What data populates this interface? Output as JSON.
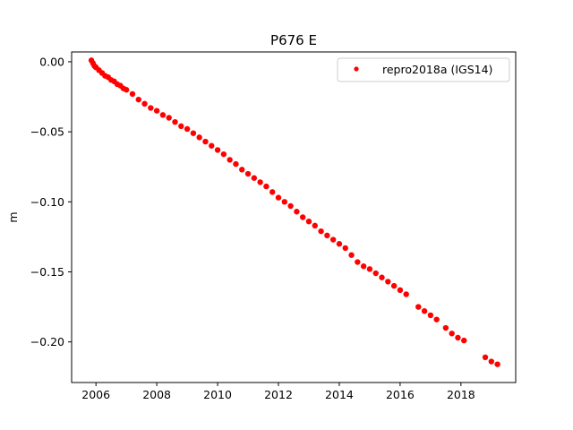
{
  "chart_data": {
    "type": "scatter",
    "title": "P676 E",
    "xlabel": "",
    "ylabel": "m",
    "xlim": [
      2005.2,
      2019.8
    ],
    "ylim": [
      -0.229,
      0.007
    ],
    "xticks": [
      2006,
      2008,
      2010,
      2012,
      2014,
      2016,
      2018
    ],
    "xtick_labels": [
      "2006",
      "2008",
      "2010",
      "2012",
      "2014",
      "2016",
      "2018"
    ],
    "yticks": [
      0.0,
      -0.05,
      -0.1,
      -0.15,
      -0.2
    ],
    "ytick_labels": [
      "0.00",
      "−0.05",
      "−0.10",
      "−0.15",
      "−0.20"
    ],
    "grid": false,
    "legend_position": "top-right",
    "series": [
      {
        "name": "repro2018a (IGS14)",
        "color": "#ff0000",
        "marker": "circle",
        "points": [
          [
            2005.85,
            0.001
          ],
          [
            2005.9,
            -0.001
          ],
          [
            2005.95,
            -0.003
          ],
          [
            2006.0,
            -0.004
          ],
          [
            2006.1,
            -0.006
          ],
          [
            2006.2,
            -0.008
          ],
          [
            2006.3,
            -0.01
          ],
          [
            2006.4,
            -0.011
          ],
          [
            2006.5,
            -0.013
          ],
          [
            2006.6,
            -0.014
          ],
          [
            2006.7,
            -0.016
          ],
          [
            2006.8,
            -0.017
          ],
          [
            2006.9,
            -0.019
          ],
          [
            2007.0,
            -0.02
          ],
          [
            2007.2,
            -0.023
          ],
          [
            2007.4,
            -0.027
          ],
          [
            2007.6,
            -0.03
          ],
          [
            2007.8,
            -0.033
          ],
          [
            2008.0,
            -0.035
          ],
          [
            2008.2,
            -0.038
          ],
          [
            2008.4,
            -0.04
          ],
          [
            2008.6,
            -0.043
          ],
          [
            2008.8,
            -0.046
          ],
          [
            2009.0,
            -0.048
          ],
          [
            2009.2,
            -0.051
          ],
          [
            2009.4,
            -0.054
          ],
          [
            2009.6,
            -0.057
          ],
          [
            2009.8,
            -0.06
          ],
          [
            2010.0,
            -0.063
          ],
          [
            2010.2,
            -0.066
          ],
          [
            2010.4,
            -0.07
          ],
          [
            2010.6,
            -0.073
          ],
          [
            2010.8,
            -0.077
          ],
          [
            2011.0,
            -0.08
          ],
          [
            2011.2,
            -0.083
          ],
          [
            2011.4,
            -0.086
          ],
          [
            2011.6,
            -0.089
          ],
          [
            2011.8,
            -0.093
          ],
          [
            2012.0,
            -0.097
          ],
          [
            2012.2,
            -0.1
          ],
          [
            2012.4,
            -0.103
          ],
          [
            2012.6,
            -0.107
          ],
          [
            2012.8,
            -0.111
          ],
          [
            2013.0,
            -0.114
          ],
          [
            2013.2,
            -0.117
          ],
          [
            2013.4,
            -0.121
          ],
          [
            2013.6,
            -0.124
          ],
          [
            2013.8,
            -0.127
          ],
          [
            2014.0,
            -0.13
          ],
          [
            2014.2,
            -0.133
          ],
          [
            2014.4,
            -0.138
          ],
          [
            2014.6,
            -0.143
          ],
          [
            2014.8,
            -0.146
          ],
          [
            2015.0,
            -0.148
          ],
          [
            2015.2,
            -0.151
          ],
          [
            2015.4,
            -0.154
          ],
          [
            2015.6,
            -0.157
          ],
          [
            2015.8,
            -0.16
          ],
          [
            2016.0,
            -0.163
          ],
          [
            2016.2,
            -0.166
          ],
          [
            2016.6,
            -0.175
          ],
          [
            2016.8,
            -0.178
          ],
          [
            2017.0,
            -0.181
          ],
          [
            2017.2,
            -0.184
          ],
          [
            2017.5,
            -0.19
          ],
          [
            2017.7,
            -0.194
          ],
          [
            2017.9,
            -0.197
          ],
          [
            2018.1,
            -0.199
          ],
          [
            2018.8,
            -0.211
          ],
          [
            2019.0,
            -0.214
          ],
          [
            2019.2,
            -0.216
          ]
        ]
      }
    ]
  }
}
